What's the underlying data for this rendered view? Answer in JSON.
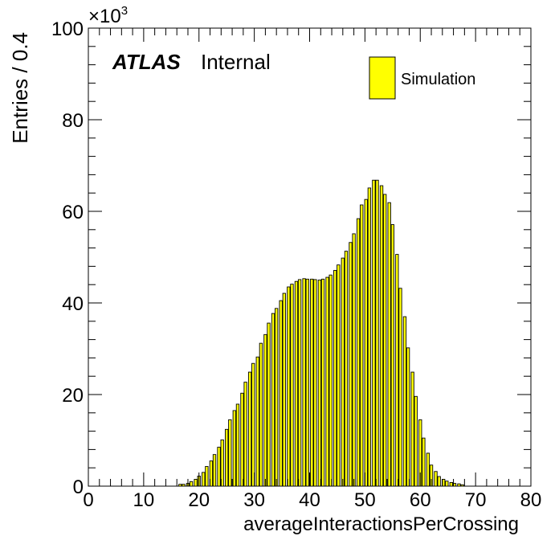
{
  "chart_data": {
    "type": "bar",
    "title": "",
    "xlabel": "averageInteractionsPerCrossing",
    "ylabel": "Entries / 0.4",
    "y_exponent_base": "×10",
    "y_exponent_power": "3",
    "xlim": [
      0,
      80
    ],
    "ylim": [
      0,
      100
    ],
    "x_ticks": [
      0,
      10,
      20,
      30,
      40,
      50,
      60,
      70,
      80
    ],
    "y_ticks": [
      0,
      20,
      40,
      60,
      80,
      100
    ],
    "bin_width": 0.4,
    "units_note": "y values in thousands of entries",
    "legend_position": "top-right",
    "series": [
      {
        "name": "Simulation",
        "color": "#ffff00",
        "edge_color": "#000000",
        "x": [
          16.6,
          17.2,
          18.0,
          18.6,
          19.4,
          20.0,
          20.8,
          21.4,
          22.2,
          22.8,
          23.6,
          24.2,
          25.0,
          25.6,
          26.4,
          27.0,
          27.8,
          28.4,
          29.2,
          29.8,
          30.6,
          31.2,
          32.0,
          32.6,
          33.4,
          34.0,
          34.8,
          35.4,
          36.2,
          36.8,
          37.6,
          38.2,
          39.0,
          39.6,
          40.4,
          41.0,
          41.8,
          42.4,
          43.2,
          43.8,
          44.6,
          45.2,
          46.0,
          46.6,
          47.4,
          48.0,
          48.8,
          49.4,
          50.2,
          50.8,
          51.6,
          52.2,
          53.0,
          53.6,
          54.4,
          55.0,
          55.8,
          56.4,
          57.2,
          57.8,
          58.6,
          59.2,
          60.0,
          60.6,
          61.4,
          62.0,
          62.8,
          63.4,
          64.2,
          64.8,
          65.6,
          66.2,
          67.0,
          67.6
        ],
        "values": [
          0.4,
          0.4,
          0.6,
          1.0,
          1.5,
          2.2,
          3.0,
          4.3,
          5.5,
          6.9,
          8.5,
          10.1,
          12.4,
          14.5,
          16.5,
          17.9,
          20.3,
          22.7,
          24.9,
          26.8,
          28.2,
          31.2,
          33.1,
          35.6,
          37.7,
          38.8,
          40.5,
          42.1,
          43.5,
          44.1,
          44.7,
          45.1,
          45.3,
          45.2,
          45.2,
          45.1,
          45.0,
          45.2,
          45.6,
          46.1,
          47.1,
          48.3,
          49.8,
          51.3,
          53.2,
          55.1,
          58.4,
          61.4,
          62.6,
          65.1,
          66.8,
          66.8,
          65.6,
          63.7,
          61.9,
          57.1,
          50.6,
          43.2,
          37.0,
          30.2,
          24.9,
          19.6,
          14.5,
          10.5,
          7.2,
          4.6,
          3.2,
          2.1,
          1.5,
          1.1,
          0.8,
          0.6,
          0.5,
          0.3
        ]
      }
    ]
  },
  "annotations": {
    "experiment": "ATLAS",
    "status": "Internal"
  }
}
